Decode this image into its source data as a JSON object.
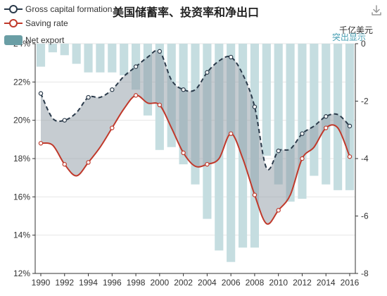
{
  "chart_data": {
    "type": "line",
    "title": "美国储蓄率、投资率和净出口",
    "x": [
      1990,
      1991,
      1992,
      1993,
      1994,
      1995,
      1996,
      1997,
      1998,
      1999,
      2000,
      2001,
      2002,
      2003,
      2004,
      2005,
      2006,
      2007,
      2008,
      2009,
      2010,
      2011,
      2012,
      2013,
      2014,
      2015,
      2016
    ],
    "x_tick_labels": [
      "1990",
      "1992",
      "1994",
      "1996",
      "1998",
      "2000",
      "2002",
      "2004",
      "2006",
      "2008",
      "2010",
      "2012",
      "2014",
      "2016"
    ],
    "y_left": {
      "range": [
        12,
        24
      ],
      "ticks": [
        "12%",
        "14%",
        "16%",
        "18%",
        "20%",
        "22%",
        "24%"
      ]
    },
    "y_right": {
      "unit_label": "千亿美元",
      "range": [
        -8,
        0
      ],
      "ticks": [
        "-8",
        "-6",
        "-4",
        "-2",
        "0"
      ]
    },
    "series": [
      {
        "name": "Gross capital formation",
        "axis": "left",
        "style": "dashed-line",
        "color": "#2a3a4a",
        "values": [
          21.4,
          20.1,
          20.0,
          20.4,
          21.2,
          21.2,
          21.6,
          22.3,
          22.8,
          23.3,
          23.6,
          22.1,
          21.6,
          21.6,
          22.5,
          23.1,
          23.3,
          22.4,
          20.7,
          17.5,
          18.4,
          18.5,
          19.3,
          19.7,
          20.2,
          20.3,
          19.7
        ]
      },
      {
        "name": "Saving rate",
        "axis": "left",
        "style": "line",
        "color": "#c0392b",
        "values": [
          18.8,
          18.7,
          17.7,
          17.1,
          17.8,
          18.6,
          19.6,
          20.6,
          21.3,
          20.9,
          20.8,
          19.6,
          18.3,
          17.6,
          17.7,
          18.0,
          19.3,
          18.0,
          16.1,
          14.6,
          15.3,
          16.1,
          18.0,
          18.6,
          19.6,
          19.6,
          18.1
        ]
      },
      {
        "name": "Net export",
        "axis": "right",
        "style": "bar",
        "color": "#c5dde0",
        "values": [
          -0.8,
          -0.3,
          -0.4,
          -0.7,
          -1.0,
          -1.0,
          -1.0,
          -1.1,
          -1.6,
          -2.5,
          -3.7,
          -3.6,
          -4.2,
          -4.9,
          -6.1,
          -7.2,
          -7.6,
          -7.1,
          -7.1,
          -3.9,
          -4.9,
          -5.5,
          -5.4,
          -4.6,
          -4.9,
          -5.1,
          -5.1
        ]
      }
    ],
    "legend": {
      "placement": "top-left"
    },
    "grid": true,
    "band_between": [
      "Gross capital formation",
      "Saving rate"
    ]
  },
  "ui": {
    "unit_label": "千亿美元",
    "highlight_label": "突出显示",
    "download_icon": "download-icon"
  },
  "colors": {
    "gcf": "#2a3a4a",
    "saving": "#c0392b",
    "net_export_legend": "#6a9ea5",
    "net_export_bar": "#c5dde0",
    "band": "#8d9aa3",
    "highlight": "#4aa0b4"
  }
}
